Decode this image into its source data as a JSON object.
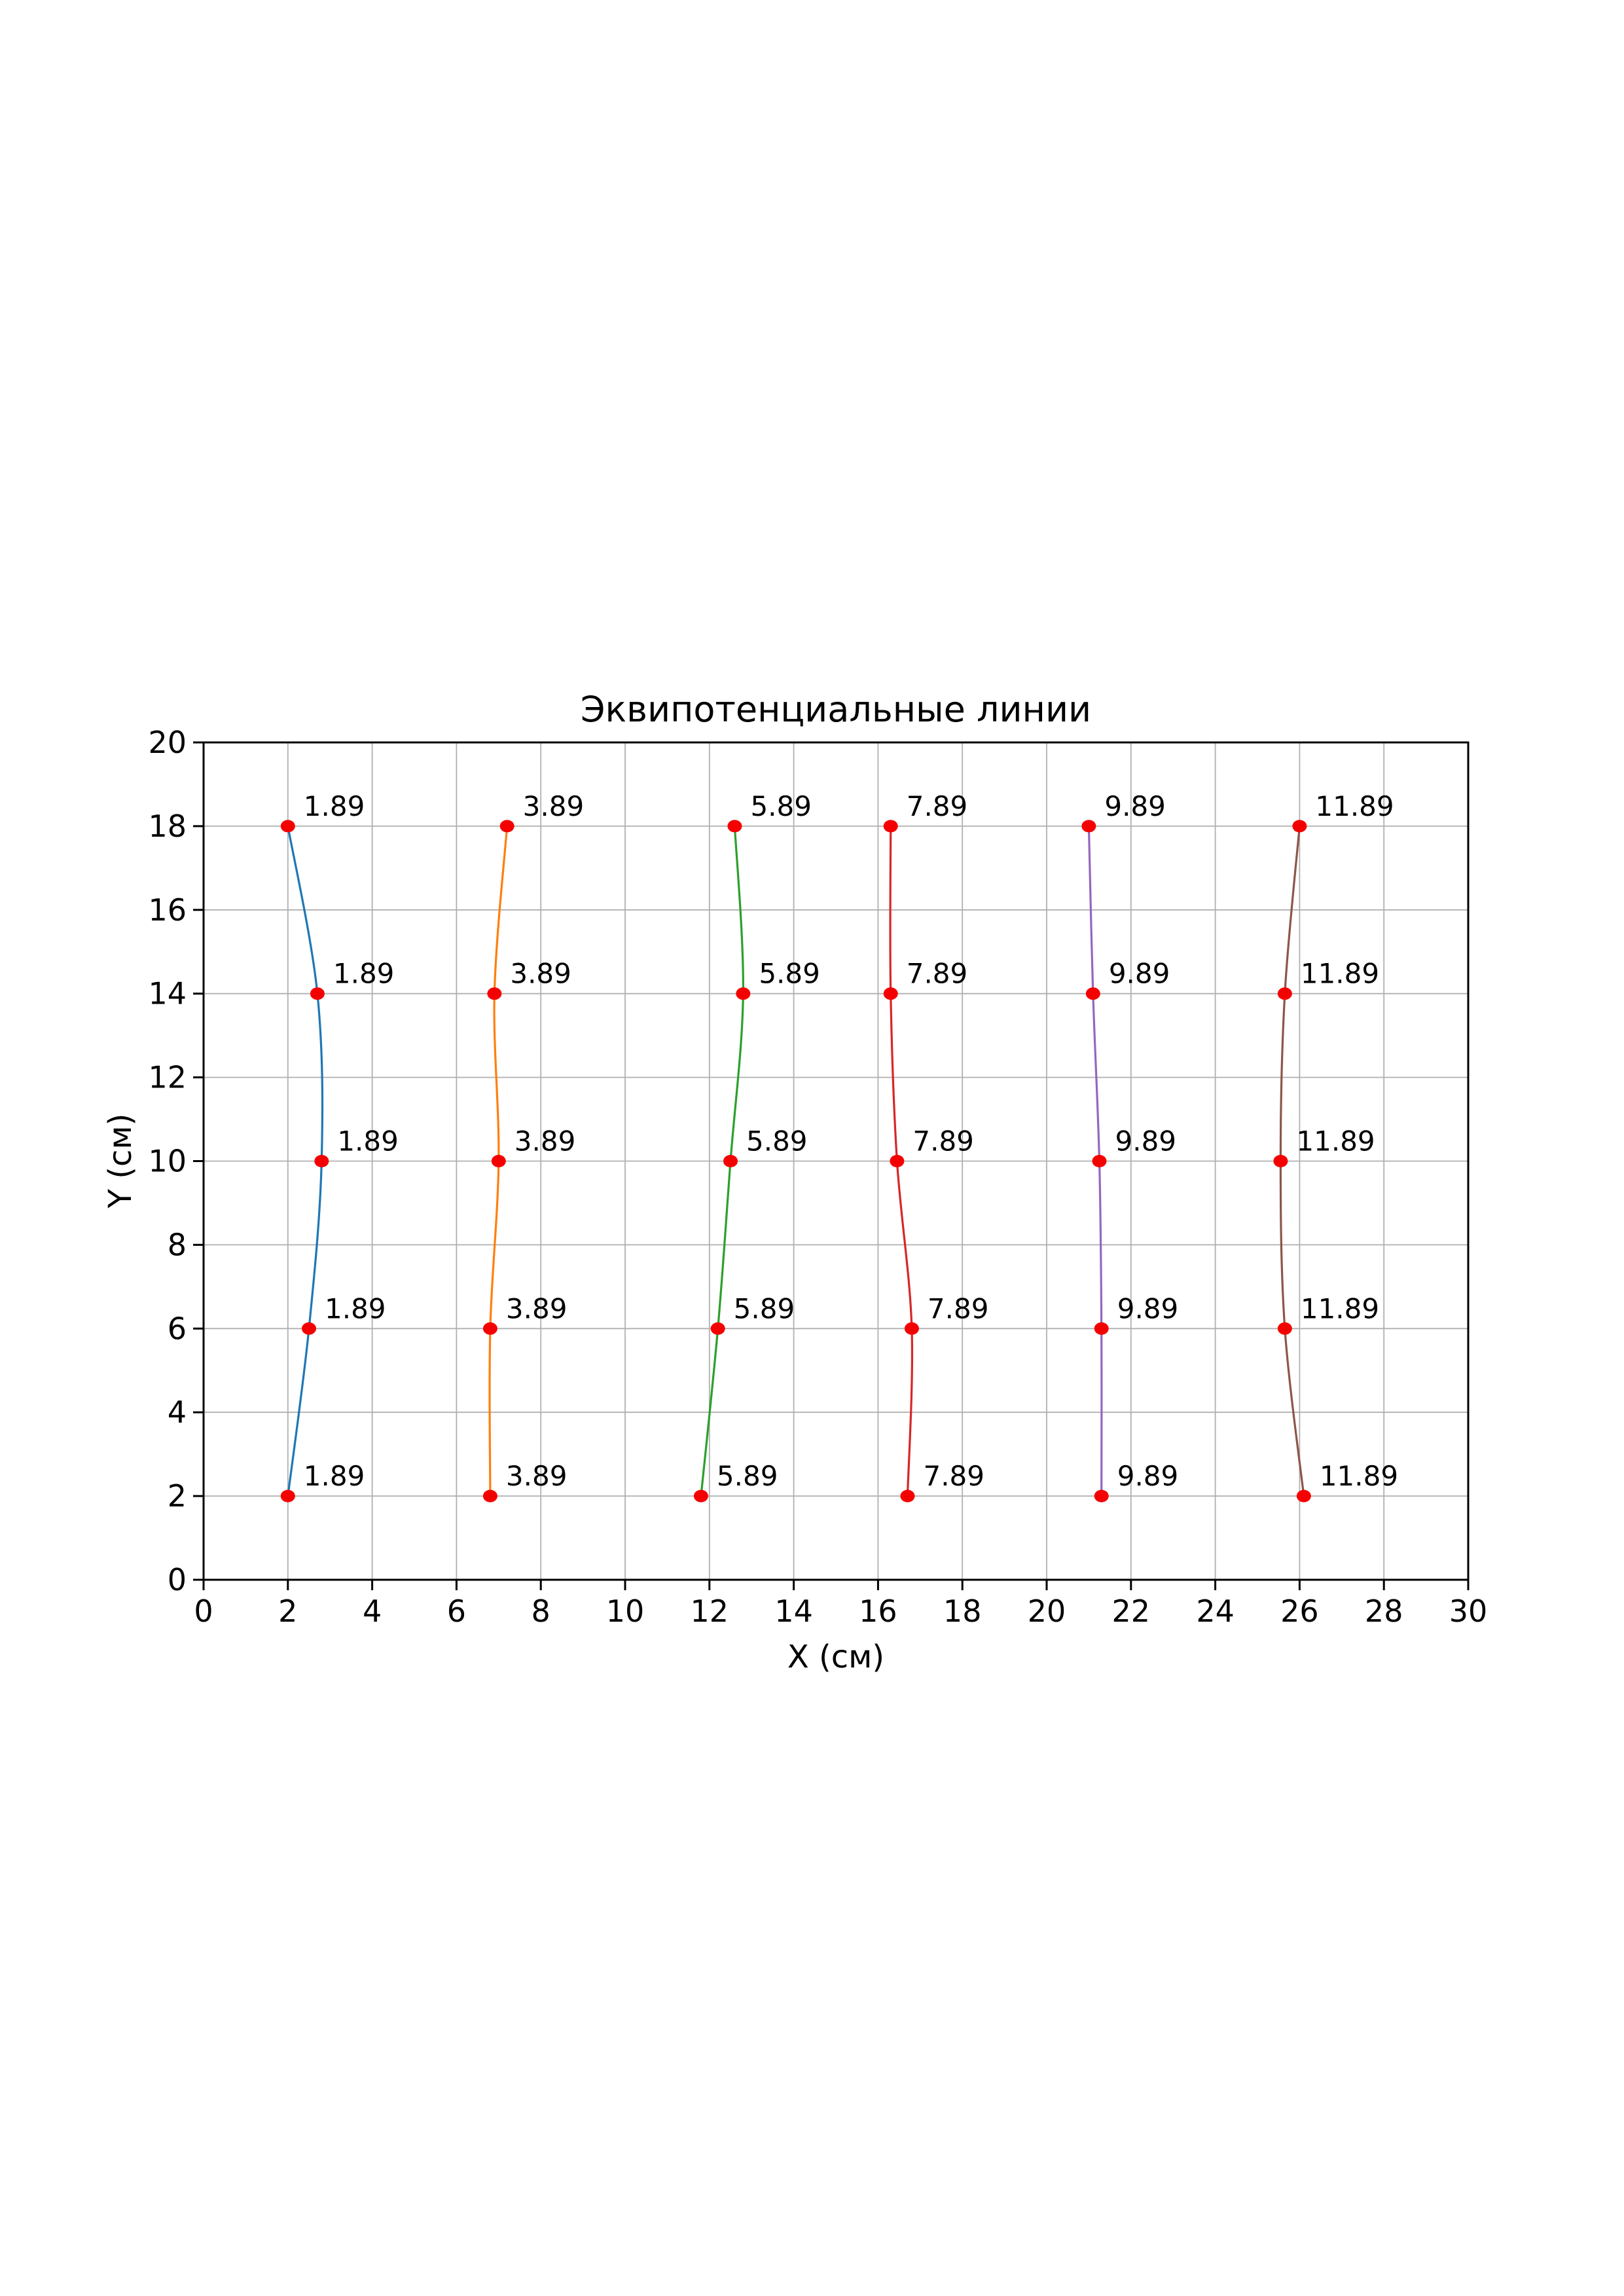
{
  "chart_data": {
    "type": "line",
    "title": "Эквипотенциальные линии",
    "xlabel": "X (см)",
    "ylabel": "Y (см)",
    "xlim": [
      0,
      30
    ],
    "ylim": [
      0,
      20
    ],
    "xticks": [
      0,
      2,
      4,
      6,
      8,
      10,
      12,
      14,
      16,
      18,
      20,
      22,
      24,
      26,
      28,
      30
    ],
    "yticks": [
      0,
      2,
      4,
      6,
      8,
      10,
      12,
      14,
      16,
      18,
      20
    ],
    "grid": true,
    "legend": "none",
    "marker_color": "#f50000",
    "marker_radius": 11,
    "series": [
      {
        "name": "line-1.89",
        "label": "1.89",
        "color": "#1f77b4",
        "points": [
          [
            2.0,
            2
          ],
          [
            2.5,
            6
          ],
          [
            2.8,
            10
          ],
          [
            2.7,
            14
          ],
          [
            2.0,
            18
          ]
        ]
      },
      {
        "name": "line-3.89",
        "label": "3.89",
        "color": "#ff7f0e",
        "points": [
          [
            6.8,
            2
          ],
          [
            6.8,
            6
          ],
          [
            7.0,
            10
          ],
          [
            6.9,
            14
          ],
          [
            7.2,
            18
          ]
        ]
      },
      {
        "name": "line-5.89",
        "label": "5.89",
        "color": "#2ca02c",
        "points": [
          [
            11.8,
            2
          ],
          [
            12.2,
            6
          ],
          [
            12.5,
            10
          ],
          [
            12.8,
            14
          ],
          [
            12.6,
            18
          ]
        ]
      },
      {
        "name": "line-7.89",
        "label": "7.89",
        "color": "#d62728",
        "points": [
          [
            16.7,
            2
          ],
          [
            16.8,
            6
          ],
          [
            16.45,
            10
          ],
          [
            16.3,
            14
          ],
          [
            16.3,
            18
          ]
        ]
      },
      {
        "name": "line-9.89",
        "label": "9.89",
        "color": "#9467bd",
        "points": [
          [
            21.3,
            2
          ],
          [
            21.3,
            6
          ],
          [
            21.25,
            10
          ],
          [
            21.1,
            14
          ],
          [
            21.0,
            18
          ]
        ]
      },
      {
        "name": "line-11.89",
        "label": "11.89",
        "color": "#8c564b",
        "points": [
          [
            26.1,
            2
          ],
          [
            25.65,
            6
          ],
          [
            25.55,
            10
          ],
          [
            25.65,
            14
          ],
          [
            26.0,
            18
          ]
        ]
      }
    ]
  }
}
